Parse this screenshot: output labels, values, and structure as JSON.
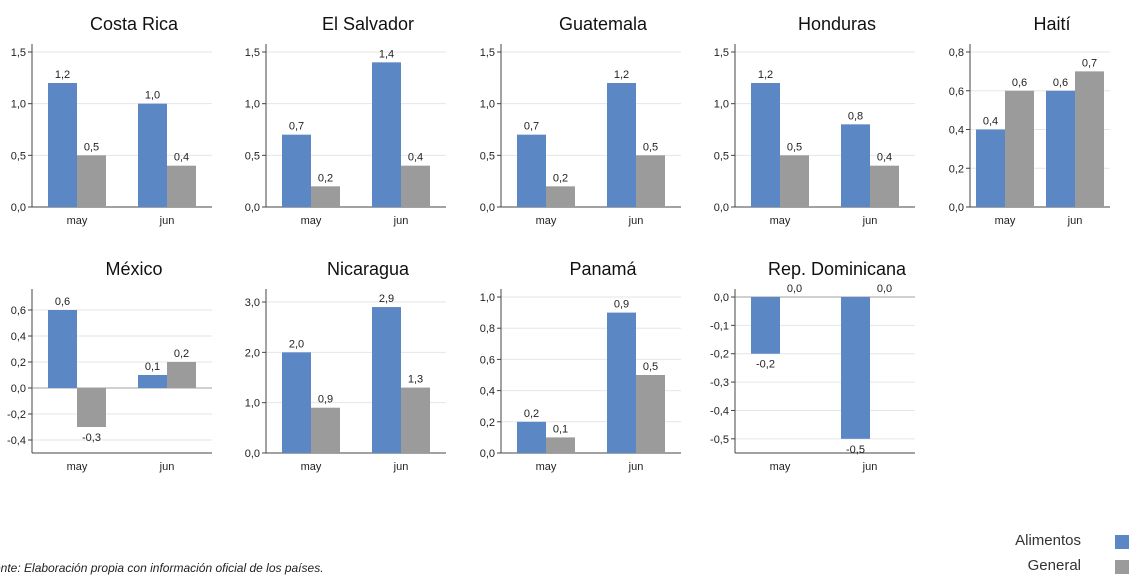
{
  "colors": {
    "food": "#5b87c5",
    "general": "#9b9b9b"
  },
  "legend": {
    "food": "Alimentos",
    "general": "General"
  },
  "source_note": "ente: Elaboración propia con información oficial de los países.",
  "chart_data": [
    {
      "type": "bar",
      "title": "Costa Rica",
      "categories": [
        "may",
        "jun"
      ],
      "series": [
        {
          "name": "Alimentos",
          "values": [
            1.2,
            1.0
          ]
        },
        {
          "name": "General",
          "values": [
            0.5,
            0.4
          ]
        }
      ],
      "ylim": [
        0,
        1.5
      ],
      "yticks": [
        0,
        0.5,
        1.0,
        1.5
      ],
      "decimals": 1
    },
    {
      "type": "bar",
      "title": "El Salvador",
      "categories": [
        "may",
        "jun"
      ],
      "series": [
        {
          "name": "Alimentos",
          "values": [
            0.7,
            1.4
          ]
        },
        {
          "name": "General",
          "values": [
            0.2,
            0.4
          ]
        }
      ],
      "ylim": [
        0,
        1.5
      ],
      "yticks": [
        0,
        0.5,
        1.0,
        1.5
      ],
      "decimals": 1
    },
    {
      "type": "bar",
      "title": "Guatemala",
      "categories": [
        "may",
        "jun"
      ],
      "series": [
        {
          "name": "Alimentos",
          "values": [
            0.7,
            1.2
          ]
        },
        {
          "name": "General",
          "values": [
            0.2,
            0.5
          ]
        }
      ],
      "ylim": [
        0,
        1.5
      ],
      "yticks": [
        0,
        0.5,
        1.0,
        1.5
      ],
      "decimals": 1
    },
    {
      "type": "bar",
      "title": "Honduras",
      "categories": [
        "may",
        "jun"
      ],
      "series": [
        {
          "name": "Alimentos",
          "values": [
            1.2,
            0.8
          ]
        },
        {
          "name": "General",
          "values": [
            0.5,
            0.4
          ]
        }
      ],
      "ylim": [
        0,
        1.5
      ],
      "yticks": [
        0,
        0.5,
        1.0,
        1.5
      ],
      "decimals": 1
    },
    {
      "type": "bar",
      "title": "Haití",
      "categories": [
        "may",
        "jun"
      ],
      "series": [
        {
          "name": "Alimentos",
          "values": [
            0.4,
            0.6
          ]
        },
        {
          "name": "General",
          "values": [
            0.6,
            0.7
          ]
        }
      ],
      "ylim": [
        0,
        0.8
      ],
      "yticks": [
        0,
        0.2,
        0.4,
        0.6,
        0.8
      ],
      "decimals": 1
    },
    {
      "type": "bar",
      "title": "México",
      "categories": [
        "may",
        "jun"
      ],
      "series": [
        {
          "name": "Alimentos",
          "values": [
            0.6,
            0.1
          ]
        },
        {
          "name": "General",
          "values": [
            -0.3,
            0.2
          ]
        }
      ],
      "ylim": [
        -0.5,
        0.7
      ],
      "yticks": [
        -0.4,
        -0.2,
        0,
        0.2,
        0.4,
        0.6
      ],
      "decimals": 1
    },
    {
      "type": "bar",
      "title": "Nicaragua",
      "categories": [
        "may",
        "jun"
      ],
      "series": [
        {
          "name": "Alimentos",
          "values": [
            2.0,
            2.9
          ]
        },
        {
          "name": "General",
          "values": [
            0.9,
            1.3
          ]
        }
      ],
      "ylim": [
        0,
        3.1
      ],
      "yticks": [
        0,
        1.0,
        2.0,
        3.0
      ],
      "decimals": 1
    },
    {
      "type": "bar",
      "title": "Panamá",
      "categories": [
        "may",
        "jun"
      ],
      "series": [
        {
          "name": "Alimentos",
          "values": [
            0.2,
            0.9
          ]
        },
        {
          "name": "General",
          "values": [
            0.1,
            0.5
          ]
        }
      ],
      "ylim": [
        0,
        1.0
      ],
      "yticks": [
        0,
        0.2,
        0.4,
        0.6,
        0.8,
        1.0
      ],
      "decimals": 1
    },
    {
      "type": "bar",
      "title": "Rep. Dominicana",
      "categories": [
        "may",
        "jun"
      ],
      "series": [
        {
          "name": "Alimentos",
          "values": [
            -0.2,
            -0.5
          ]
        },
        {
          "name": "General",
          "values": [
            0.0,
            0.0
          ]
        }
      ],
      "ylim": [
        -0.55,
        0.0
      ],
      "yticks": [
        -0.5,
        -0.4,
        -0.3,
        -0.2,
        -0.1,
        0.0
      ],
      "decimals": 1
    }
  ]
}
